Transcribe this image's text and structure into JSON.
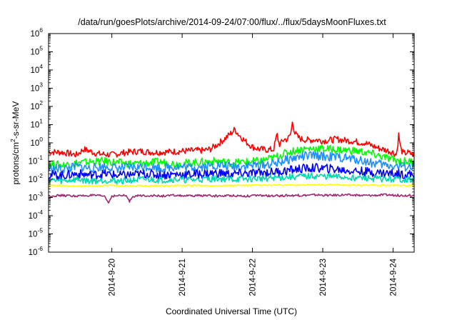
{
  "chart_data": {
    "type": "line",
    "title": "/data/run/goesPlots/archive/2014-09-24/07:00/flux/../flux/5daysMoonFluxes.txt",
    "xlabel": "Coordinated Universal Time (UTC)",
    "ylabel": {
      "base": "protons/cm",
      "sup": "2",
      "rest": "-s-sr-MeV"
    },
    "y_scale": "log",
    "ylim": [
      1e-06,
      1000000.0
    ],
    "y_ticks": [
      {
        "v": -6,
        "label": "10",
        "exp": "-6"
      },
      {
        "v": -5,
        "label": "10",
        "exp": "-5"
      },
      {
        "v": -4,
        "label": "10",
        "exp": "-4"
      },
      {
        "v": -3,
        "label": "10",
        "exp": "-3"
      },
      {
        "v": -2,
        "label": "10",
        "exp": "-2"
      },
      {
        "v": -1,
        "label": "10",
        "exp": "-1"
      },
      {
        "v": 0,
        "label": "10",
        "exp": "0"
      },
      {
        "v": 1,
        "label": "10",
        "exp": "1"
      },
      {
        "v": 2,
        "label": "10",
        "exp": "2"
      },
      {
        "v": 3,
        "label": "10",
        "exp": "3"
      },
      {
        "v": 4,
        "label": "10",
        "exp": "4"
      },
      {
        "v": 5,
        "label": "10",
        "exp": "5"
      },
      {
        "v": 6,
        "label": "10",
        "exp": "6"
      }
    ],
    "x_ticks": [
      {
        "t": 1,
        "label": "2014-9-20"
      },
      {
        "t": 2,
        "label": "2014-9-21"
      },
      {
        "t": 3,
        "label": "2014-9-22"
      },
      {
        "t": 4,
        "label": "2014-9-23"
      },
      {
        "t": 5,
        "label": "2014-9-24"
      }
    ],
    "xlim_days_from_2014-9-19": [
      0.1,
      5.3
    ],
    "grid": false,
    "legend": "none",
    "series": [
      {
        "color": "#ff0000",
        "points": [
          [
            0.1,
            0.32
          ],
          [
            0.3,
            0.3
          ],
          [
            0.5,
            0.22
          ],
          [
            0.6,
            0.45
          ],
          [
            0.8,
            0.25
          ],
          [
            1.0,
            0.22
          ],
          [
            1.2,
            0.3
          ],
          [
            1.4,
            0.35
          ],
          [
            1.6,
            0.3
          ],
          [
            1.8,
            0.32
          ],
          [
            2.0,
            0.35
          ],
          [
            2.2,
            0.38
          ],
          [
            2.3,
            0.38
          ],
          [
            2.4,
            0.45
          ],
          [
            2.5,
            0.8
          ],
          [
            2.6,
            1.6
          ],
          [
            2.7,
            3.5
          ],
          [
            2.75,
            5.5
          ],
          [
            2.8,
            3.0
          ],
          [
            2.9,
            1.2
          ],
          [
            3.0,
            0.6
          ],
          [
            3.1,
            0.45
          ],
          [
            3.2,
            0.42
          ],
          [
            3.3,
            0.42
          ],
          [
            3.35,
            3.0
          ],
          [
            3.38,
            0.8
          ],
          [
            3.4,
            0.9
          ],
          [
            3.45,
            1.6
          ],
          [
            3.5,
            1.5
          ],
          [
            3.55,
            3.5
          ],
          [
            3.57,
            18
          ],
          [
            3.6,
            3.5
          ],
          [
            3.65,
            2.0
          ],
          [
            3.7,
            1.6
          ],
          [
            3.8,
            1.4
          ],
          [
            3.9,
            1.5
          ],
          [
            4.0,
            1.3
          ],
          [
            4.1,
            1.4
          ],
          [
            4.2,
            1.6
          ],
          [
            4.3,
            1.4
          ],
          [
            4.4,
            1.3
          ],
          [
            4.5,
            1.1
          ],
          [
            4.6,
            1.0
          ],
          [
            4.7,
            0.7
          ],
          [
            4.8,
            0.5
          ],
          [
            4.9,
            0.4
          ],
          [
            5.0,
            0.3
          ],
          [
            5.05,
            0.22
          ],
          [
            5.08,
            2.8
          ],
          [
            5.11,
            0.45
          ],
          [
            5.15,
            0.25
          ],
          [
            5.2,
            0.3
          ],
          [
            5.3,
            0.22
          ]
        ]
      },
      {
        "color": "#00ff00",
        "points": [
          [
            0.1,
            0.07
          ],
          [
            0.3,
            0.06
          ],
          [
            0.5,
            0.08
          ],
          [
            0.7,
            0.09
          ],
          [
            0.9,
            0.1
          ],
          [
            1.1,
            0.08
          ],
          [
            1.3,
            0.07
          ],
          [
            1.5,
            0.08
          ],
          [
            1.7,
            0.09
          ],
          [
            1.9,
            0.07
          ],
          [
            2.1,
            0.08
          ],
          [
            2.3,
            0.09
          ],
          [
            2.5,
            0.1
          ],
          [
            2.7,
            0.08
          ],
          [
            2.9,
            0.09
          ],
          [
            3.1,
            0.1
          ],
          [
            3.3,
            0.15
          ],
          [
            3.5,
            0.3
          ],
          [
            3.7,
            0.45
          ],
          [
            3.9,
            0.5
          ],
          [
            4.1,
            0.45
          ],
          [
            4.3,
            0.4
          ],
          [
            4.5,
            0.35
          ],
          [
            4.7,
            0.25
          ],
          [
            4.9,
            0.15
          ],
          [
            5.1,
            0.1
          ],
          [
            5.3,
            0.09
          ]
        ]
      },
      {
        "color": "#1e8fff",
        "points": [
          [
            0.1,
            0.04
          ],
          [
            0.3,
            0.035
          ],
          [
            0.5,
            0.05
          ],
          [
            0.7,
            0.04
          ],
          [
            0.9,
            0.05
          ],
          [
            1.1,
            0.04
          ],
          [
            1.3,
            0.045
          ],
          [
            1.5,
            0.05
          ],
          [
            1.7,
            0.04
          ],
          [
            1.9,
            0.05
          ],
          [
            2.1,
            0.045
          ],
          [
            2.3,
            0.05
          ],
          [
            2.5,
            0.06
          ],
          [
            2.7,
            0.05
          ],
          [
            2.9,
            0.055
          ],
          [
            3.1,
            0.06
          ],
          [
            3.3,
            0.07
          ],
          [
            3.5,
            0.12
          ],
          [
            3.7,
            0.18
          ],
          [
            3.9,
            0.2
          ],
          [
            4.1,
            0.17
          ],
          [
            4.3,
            0.15
          ],
          [
            4.5,
            0.12
          ],
          [
            4.7,
            0.08
          ],
          [
            4.9,
            0.06
          ],
          [
            5.1,
            0.05
          ],
          [
            5.3,
            0.045
          ]
        ]
      },
      {
        "color": "#0000ff",
        "points": [
          [
            0.1,
            0.018
          ],
          [
            0.3,
            0.016
          ],
          [
            0.5,
            0.02
          ],
          [
            0.7,
            0.017
          ],
          [
            0.9,
            0.02
          ],
          [
            1.1,
            0.016
          ],
          [
            1.3,
            0.018
          ],
          [
            1.5,
            0.02
          ],
          [
            1.7,
            0.017
          ],
          [
            1.9,
            0.019
          ],
          [
            2.1,
            0.018
          ],
          [
            2.3,
            0.02
          ],
          [
            2.5,
            0.022
          ],
          [
            2.7,
            0.019
          ],
          [
            2.9,
            0.021
          ],
          [
            3.1,
            0.022
          ],
          [
            3.3,
            0.025
          ],
          [
            3.5,
            0.03
          ],
          [
            3.7,
            0.038
          ],
          [
            3.9,
            0.042
          ],
          [
            4.1,
            0.038
          ],
          [
            4.3,
            0.032
          ],
          [
            4.5,
            0.028
          ],
          [
            4.7,
            0.024
          ],
          [
            4.9,
            0.022
          ],
          [
            5.1,
            0.02
          ],
          [
            5.3,
            0.018
          ]
        ]
      },
      {
        "color": "#00d7b0",
        "points": [
          [
            0.1,
            0.009
          ],
          [
            0.3,
            0.008
          ],
          [
            0.5,
            0.01
          ],
          [
            0.7,
            0.008
          ],
          [
            0.9,
            0.009
          ],
          [
            1.1,
            0.008
          ],
          [
            1.3,
            0.009
          ],
          [
            1.5,
            0.01
          ],
          [
            1.7,
            0.009
          ],
          [
            1.9,
            0.01
          ],
          [
            2.1,
            0.009
          ],
          [
            2.3,
            0.01
          ],
          [
            2.5,
            0.011
          ],
          [
            2.7,
            0.01
          ],
          [
            2.9,
            0.01
          ],
          [
            3.1,
            0.011
          ],
          [
            3.3,
            0.012
          ],
          [
            3.5,
            0.013
          ],
          [
            3.7,
            0.014
          ],
          [
            3.9,
            0.015
          ],
          [
            4.1,
            0.014
          ],
          [
            4.3,
            0.013
          ],
          [
            4.5,
            0.012
          ],
          [
            4.7,
            0.011
          ],
          [
            4.9,
            0.01
          ],
          [
            5.1,
            0.01
          ],
          [
            5.3,
            0.009
          ]
        ]
      },
      {
        "color": "#ffff00",
        "points": [
          [
            0.1,
            0.0045
          ],
          [
            0.5,
            0.0042
          ],
          [
            1.0,
            0.0045
          ],
          [
            1.5,
            0.0043
          ],
          [
            2.0,
            0.0046
          ],
          [
            2.5,
            0.0045
          ],
          [
            3.0,
            0.0047
          ],
          [
            3.5,
            0.0048
          ],
          [
            4.0,
            0.005
          ],
          [
            4.5,
            0.0048
          ],
          [
            5.0,
            0.0047
          ],
          [
            5.3,
            0.0046
          ]
        ]
      },
      {
        "color": "#9b2a6e",
        "points": [
          [
            0.1,
            0.0012
          ],
          [
            0.3,
            0.0013
          ],
          [
            0.5,
            0.0012
          ],
          [
            0.7,
            0.0013
          ],
          [
            0.9,
            0.0012
          ],
          [
            0.95,
            0.0005
          ],
          [
            1.0,
            0.0012
          ],
          [
            1.2,
            0.0013
          ],
          [
            1.25,
            0.0006
          ],
          [
            1.3,
            0.0012
          ],
          [
            1.5,
            0.0013
          ],
          [
            1.7,
            0.0012
          ],
          [
            1.9,
            0.0013
          ],
          [
            2.1,
            0.0012
          ],
          [
            2.3,
            0.0013
          ],
          [
            2.5,
            0.0012
          ],
          [
            2.7,
            0.0013
          ],
          [
            2.9,
            0.0012
          ],
          [
            3.1,
            0.0013
          ],
          [
            3.3,
            0.0012
          ],
          [
            3.5,
            0.0013
          ],
          [
            3.7,
            0.0013
          ],
          [
            3.9,
            0.0014
          ],
          [
            4.1,
            0.0013
          ],
          [
            4.3,
            0.0014
          ],
          [
            4.5,
            0.0013
          ],
          [
            4.7,
            0.0013
          ],
          [
            4.9,
            0.0014
          ],
          [
            5.1,
            0.0013
          ],
          [
            5.3,
            0.0013
          ]
        ]
      }
    ]
  }
}
